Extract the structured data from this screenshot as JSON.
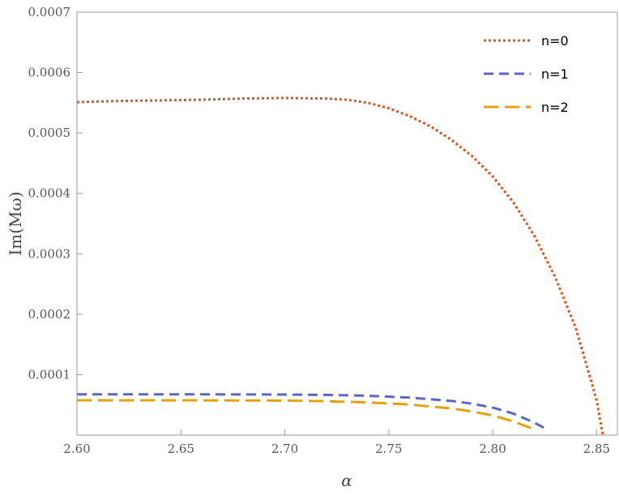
{
  "chart_data": {
    "type": "line",
    "title": "",
    "xlabel": "α",
    "ylabel": "Im(Mω)",
    "xlim": [
      2.6,
      2.86
    ],
    "ylim": [
      0,
      0.0007
    ],
    "x_ticks": [
      2.6,
      2.65,
      2.7,
      2.75,
      2.8,
      2.85
    ],
    "x_tick_labels": [
      "2.60",
      "2.65",
      "2.70",
      "2.75",
      "2.80",
      "2.85"
    ],
    "y_ticks": [
      0.0001,
      0.0002,
      0.0003,
      0.0004,
      0.0005,
      0.0006,
      0.0007
    ],
    "y_tick_labels": [
      "0.0001",
      "0.0002",
      "0.0003",
      "0.0004",
      "0.0005",
      "0.0006",
      "0.0007"
    ],
    "grid": false,
    "legend_position": "top-right",
    "series": [
      {
        "name": "n=0",
        "color": "#e2531e",
        "style": "dotted",
        "x": [
          2.6,
          2.62,
          2.64,
          2.66,
          2.68,
          2.7,
          2.72,
          2.73,
          2.74,
          2.75,
          2.76,
          2.77,
          2.78,
          2.79,
          2.8,
          2.81,
          2.82,
          2.83,
          2.84,
          2.85,
          2.853
        ],
        "y": [
          0.000551,
          0.000553,
          0.000554,
          0.000555,
          0.000557,
          0.000558,
          0.000557,
          0.000555,
          0.00055,
          0.000541,
          0.000528,
          0.000511,
          0.000489,
          0.000462,
          0.000428,
          0.000385,
          0.00033,
          0.000262,
          0.000177,
          5.8e-05,
          0.0
        ]
      },
      {
        "name": "n=1",
        "color": "#5b67c7",
        "style": "dashed",
        "x": [
          2.6,
          2.65,
          2.7,
          2.72,
          2.74,
          2.76,
          2.78,
          2.79,
          2.8,
          2.81,
          2.82,
          2.826
        ],
        "y": [
          6.75e-05,
          6.75e-05,
          6.7e-05,
          6.65e-05,
          6.5e-05,
          6.2e-05,
          5.65e-05,
          5.2e-05,
          4.55e-05,
          3.55e-05,
          2.05e-05,
          9.5e-06
        ]
      },
      {
        "name": "n=2",
        "color": "#e8a10e",
        "style": "dashed",
        "x": [
          2.6,
          2.65,
          2.7,
          2.72,
          2.74,
          2.76,
          2.78,
          2.79,
          2.8,
          2.81,
          2.82
        ],
        "y": [
          5.75e-05,
          5.75e-05,
          5.7e-05,
          5.6e-05,
          5.4e-05,
          5.05e-05,
          4.4e-05,
          3.9e-05,
          3.25e-05,
          2.25e-05,
          9.5e-06
        ]
      }
    ]
  }
}
